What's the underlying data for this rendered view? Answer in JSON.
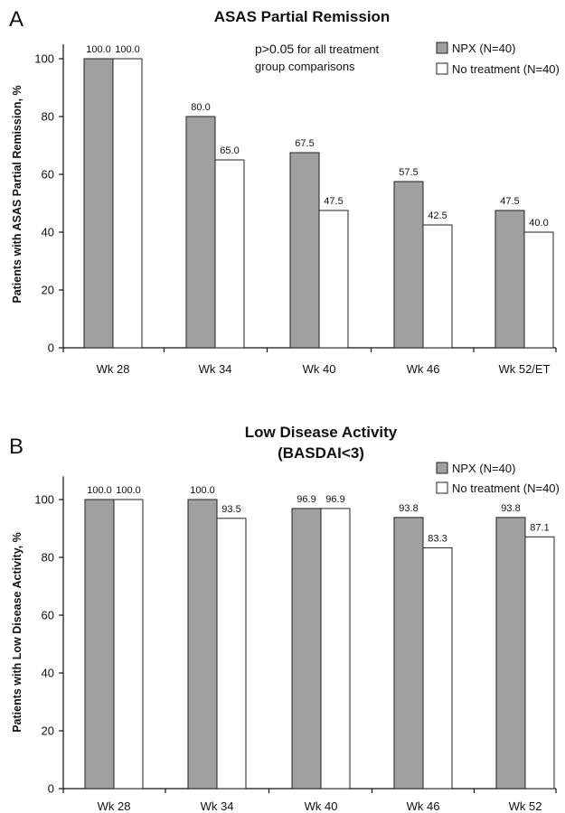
{
  "chart_data": [
    {
      "type": "bar",
      "panel": "A",
      "title": "ASAS Partial Remission",
      "ylabel": "Patients with ASAS Partial Remission, %",
      "xlabel": "",
      "ylim": [
        0,
        105
      ],
      "yticks": [
        0,
        20,
        40,
        60,
        80,
        100
      ],
      "categories": [
        "Wk 28",
        "Wk 34",
        "Wk 40",
        "Wk 46",
        "Wk 52/ET"
      ],
      "series": [
        {
          "name": "NPX (N=40)",
          "color": "#a0a0a0",
          "values": [
            100.0,
            80.0,
            67.5,
            57.5,
            47.5
          ],
          "labels": [
            "100.0",
            "80.0",
            "67.5",
            "57.5",
            "47.5"
          ]
        },
        {
          "name": "No treatment (N=40)",
          "color": "#ffffff",
          "values": [
            100.0,
            65.0,
            47.5,
            42.5,
            40.0
          ],
          "labels": [
            "100.0",
            "65.0",
            "47.5",
            "42.5",
            "40.0"
          ]
        }
      ],
      "annotation": {
        "strong": "p>0.05",
        "rest_line1": "for all treatment",
        "line2": "group comparisons"
      },
      "legend_position": "top-right",
      "grid": false
    },
    {
      "type": "bar",
      "panel": "B",
      "title": "Low Disease Activity",
      "subtitle": "(BASDAI<3)",
      "ylabel": "Patients with Low Disease Activity, %",
      "xlabel": "",
      "ylim": [
        0,
        108
      ],
      "yticks": [
        0,
        20,
        40,
        60,
        80,
        100
      ],
      "categories": [
        "Wk 28",
        "Wk 34",
        "Wk 40",
        "Wk 46",
        "Wk 52"
      ],
      "series": [
        {
          "name": "NPX (N=40)",
          "color": "#a0a0a0",
          "values": [
            100.0,
            100.0,
            96.9,
            93.8,
            93.8
          ],
          "labels": [
            "100.0",
            "100.0",
            "96.9",
            "93.8",
            "93.8"
          ]
        },
        {
          "name": "No treatment (N=40)",
          "color": "#ffffff",
          "values": [
            100.0,
            93.5,
            96.9,
            83.3,
            87.1
          ],
          "labels": [
            "100.0",
            "93.5",
            "96.9",
            "83.3",
            "87.1"
          ]
        }
      ],
      "legend_position": "top-right",
      "grid": false
    }
  ]
}
